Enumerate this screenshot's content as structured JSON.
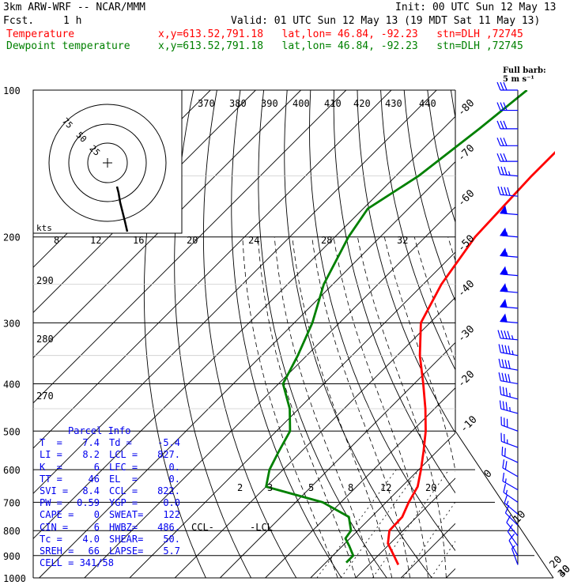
{
  "header": {
    "model": "3km ARW-WRF -- NCAR/MMM",
    "fcst_label": "Fcst.",
    "fcst_value": "1 h",
    "init": "Init: 00 UTC Sun 12 May 13",
    "valid": "Valid: 01 UTC Sun 12 May 13 (19 MDT Sat 11 May 13)",
    "temp_label": "Temperature",
    "dew_label": "Dewpoint temperature",
    "loc": "x,y=613.52,791.18   lat,lon= 46.84, -92.23   stn=DLH ,72745",
    "temp_color": "#ff0000",
    "dew_color": "#008000"
  },
  "barb_legend": {
    "line1": "Full barb:",
    "line2": "5 m s⁻¹"
  },
  "hodograph": {
    "rings": [
      25,
      50,
      75
    ],
    "kts_label": "kts",
    "speed_ticks": [
      "8",
      "12",
      "16",
      "20",
      "24",
      "28",
      "32"
    ]
  },
  "theta_e_labels": [
    "370",
    "380",
    "390",
    "400",
    "410",
    "420",
    "430",
    "440"
  ],
  "theta_side_labels": [
    "290",
    "280",
    "270"
  ],
  "mixing_ratio_labels": [
    "2",
    "3",
    "5",
    "8",
    "12",
    "20"
  ],
  "lcl_labels": {
    "ccl": "CCL-",
    "lcl": "-LCL"
  },
  "parcel_info": {
    "title": "Parcel Info",
    "rows": [
      [
        "T  =",
        "7.4",
        "Td =",
        "-5.4"
      ],
      [
        "LI =",
        "8.2",
        "LCL =",
        "827."
      ],
      [
        "K  =",
        "6",
        "LFC =",
        "0."
      ],
      [
        "TT =",
        "46",
        "EL  =",
        "0."
      ],
      [
        "SVI =",
        "8.4",
        "CCL =",
        "822."
      ],
      [
        "PW =",
        "0.59",
        "YGP =",
        "0.0"
      ],
      [
        "CAPE =",
        "0",
        "SWEAT=",
        "122"
      ],
      [
        "CIN =",
        "6",
        "HWBZ=",
        "486."
      ],
      [
        "Tc =",
        "4.0",
        "SHEAR=",
        "50."
      ],
      [
        "SREH =",
        "66",
        "LAPSE=",
        "5.7"
      ]
    ],
    "cell": "CELL = 341/58"
  },
  "chart_data": {
    "type": "line",
    "title": "3km ARW-WRF -- NCAR/MMM",
    "y_axis": "pressure (hPa, log)",
    "x_axis": "temperature (°C, skewed)",
    "pressure_levels": [
      100,
      200,
      300,
      400,
      500,
      600,
      700,
      800,
      900,
      1000
    ],
    "isotherm_labels": [
      -80,
      -70,
      -60,
      -50,
      -40,
      -30,
      -20,
      -10,
      0,
      10,
      20,
      30,
      40
    ],
    "series": [
      {
        "name": "Temperature",
        "color": "#ff0000",
        "points": [
          [
            940,
            6.5
          ],
          [
            900,
            3.5
          ],
          [
            850,
            -0.5
          ],
          [
            800,
            -3.0
          ],
          [
            750,
            -3.2
          ],
          [
            700,
            -5.0
          ],
          [
            650,
            -6.5
          ],
          [
            600,
            -9.5
          ],
          [
            550,
            -13.0
          ],
          [
            500,
            -17.0
          ],
          [
            450,
            -22.0
          ],
          [
            400,
            -28.0
          ],
          [
            350,
            -35.0
          ],
          [
            300,
            -42.0
          ],
          [
            250,
            -46.0
          ],
          [
            200,
            -49.0
          ],
          [
            150,
            -50.0
          ],
          [
            120,
            -50.0
          ],
          [
            100,
            -51.0
          ]
        ]
      },
      {
        "name": "Dewpoint temperature",
        "color": "#008000",
        "points": [
          [
            930,
            -5.5
          ],
          [
            900,
            -5.5
          ],
          [
            860,
            -8.5
          ],
          [
            830,
            -11.0
          ],
          [
            800,
            -11.5
          ],
          [
            750,
            -15.0
          ],
          [
            700,
            -24.0
          ],
          [
            650,
            -40.0
          ],
          [
            600,
            -43.0
          ],
          [
            550,
            -45.0
          ],
          [
            500,
            -47.0
          ],
          [
            450,
            -52.0
          ],
          [
            400,
            -59.0
          ],
          [
            350,
            -62.0
          ],
          [
            300,
            -66.0
          ],
          [
            250,
            -72.0
          ],
          [
            200,
            -77.0
          ],
          [
            175,
            -79.0
          ],
          [
            150,
            -75.0
          ],
          [
            120,
            -72.0
          ],
          [
            100,
            -70.0
          ]
        ]
      }
    ],
    "wind_barbs": [
      {
        "p": 100,
        "dir": 270,
        "spd": 30
      },
      {
        "p": 110,
        "dir": 270,
        "spd": 30
      },
      {
        "p": 120,
        "dir": 270,
        "spd": 30
      },
      {
        "p": 130,
        "dir": 270,
        "spd": 30
      },
      {
        "p": 140,
        "dir": 270,
        "spd": 30
      },
      {
        "p": 150,
        "dir": 275,
        "spd": 35
      },
      {
        "p": 165,
        "dir": 275,
        "spd": 40
      },
      {
        "p": 180,
        "dir": 275,
        "spd": 50
      },
      {
        "p": 200,
        "dir": 275,
        "spd": 55
      },
      {
        "p": 220,
        "dir": 275,
        "spd": 55
      },
      {
        "p": 240,
        "dir": 275,
        "spd": 55
      },
      {
        "p": 260,
        "dir": 275,
        "spd": 55
      },
      {
        "p": 280,
        "dir": 275,
        "spd": 50
      },
      {
        "p": 300,
        "dir": 275,
        "spd": 50
      },
      {
        "p": 325,
        "dir": 275,
        "spd": 45
      },
      {
        "p": 350,
        "dir": 280,
        "spd": 45
      },
      {
        "p": 375,
        "dir": 280,
        "spd": 40
      },
      {
        "p": 400,
        "dir": 280,
        "spd": 40
      },
      {
        "p": 430,
        "dir": 285,
        "spd": 35
      },
      {
        "p": 460,
        "dir": 285,
        "spd": 35
      },
      {
        "p": 500,
        "dir": 290,
        "spd": 30
      },
      {
        "p": 540,
        "dir": 290,
        "spd": 25
      },
      {
        "p": 580,
        "dir": 295,
        "spd": 20
      },
      {
        "p": 620,
        "dir": 300,
        "spd": 20
      },
      {
        "p": 660,
        "dir": 300,
        "spd": 15
      },
      {
        "p": 700,
        "dir": 305,
        "spd": 15
      },
      {
        "p": 740,
        "dir": 310,
        "spd": 15
      },
      {
        "p": 780,
        "dir": 315,
        "spd": 10
      },
      {
        "p": 820,
        "dir": 320,
        "spd": 10
      },
      {
        "p": 860,
        "dir": 325,
        "spd": 10
      },
      {
        "p": 900,
        "dir": 330,
        "spd": 10
      },
      {
        "p": 940,
        "dir": 340,
        "spd": 5
      }
    ]
  }
}
